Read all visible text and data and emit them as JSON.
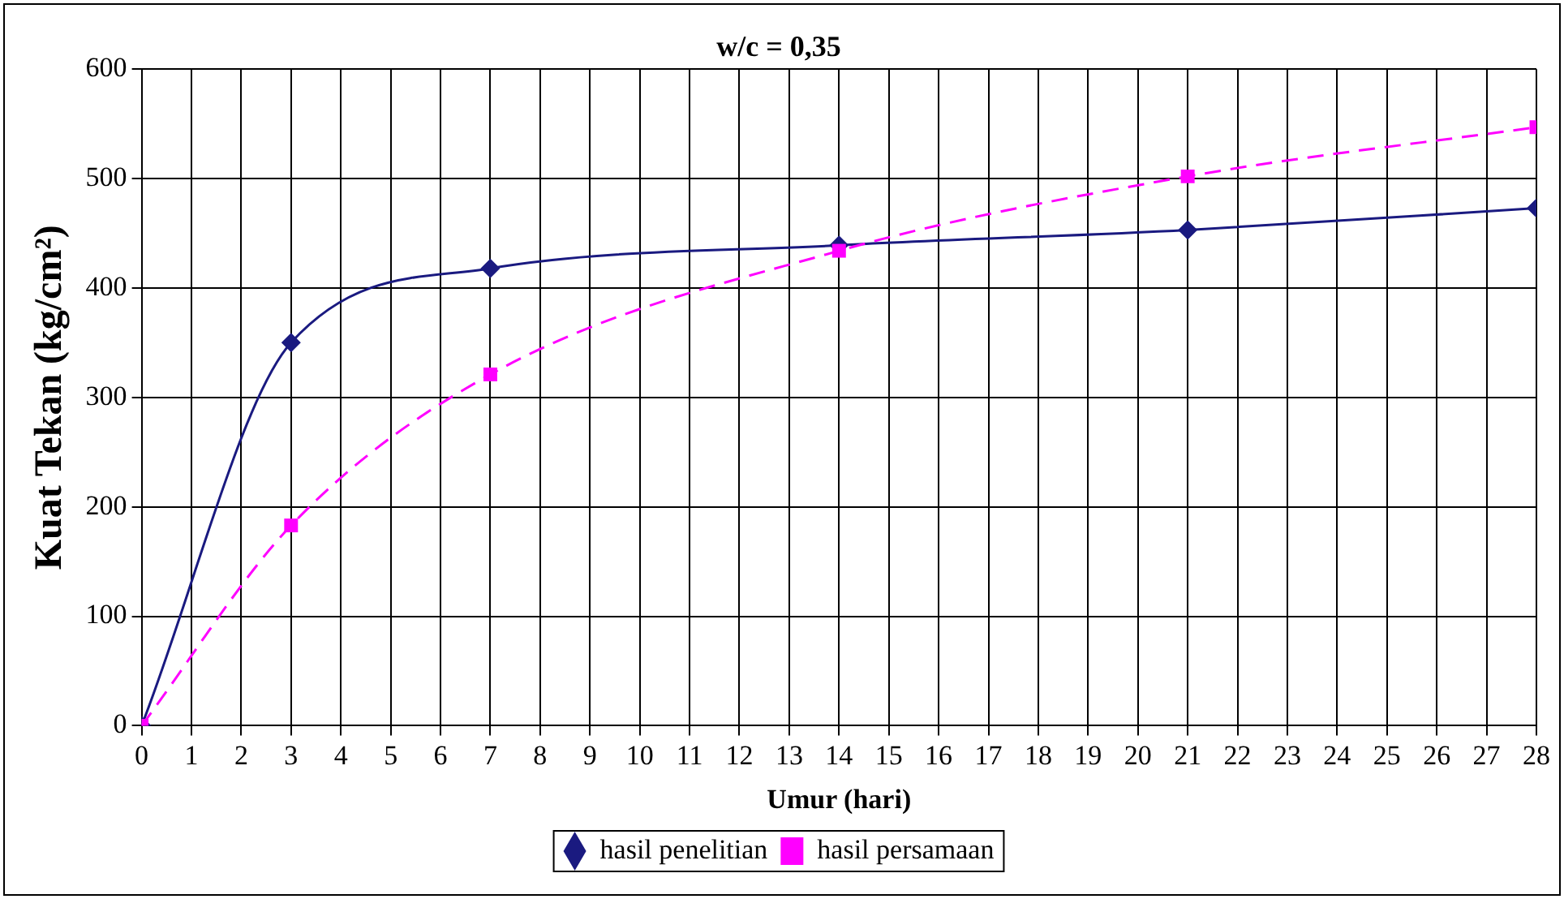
{
  "chart_data": {
    "type": "line",
    "title": "w/c = 0,35",
    "xlabel": "Umur (hari)",
    "ylabel": "Kuat Tekan (kg/cm²)",
    "x": [
      0,
      3,
      7,
      14,
      21,
      28
    ],
    "series": [
      {
        "name": "hasil penelitian",
        "color": "#1a1a80",
        "values": [
          0,
          350,
          418,
          439,
          453,
          473
        ],
        "marker": "diamond",
        "line_style": "solid"
      },
      {
        "name": "hasil persamaan",
        "color": "#ff00ff",
        "values": [
          0,
          183,
          321,
          434,
          502,
          547
        ],
        "marker": "square",
        "line_style": "dashed"
      }
    ],
    "xlim": [
      0,
      28
    ],
    "xticks": [
      0,
      1,
      2,
      3,
      4,
      5,
      6,
      7,
      8,
      9,
      10,
      11,
      12,
      13,
      14,
      15,
      16,
      17,
      18,
      19,
      20,
      21,
      22,
      23,
      24,
      25,
      26,
      27,
      28
    ],
    "ylim": [
      0,
      600
    ],
    "yticks": [
      0,
      100,
      200,
      300,
      400,
      500,
      600
    ],
    "grid": true,
    "legend": "bottom"
  }
}
